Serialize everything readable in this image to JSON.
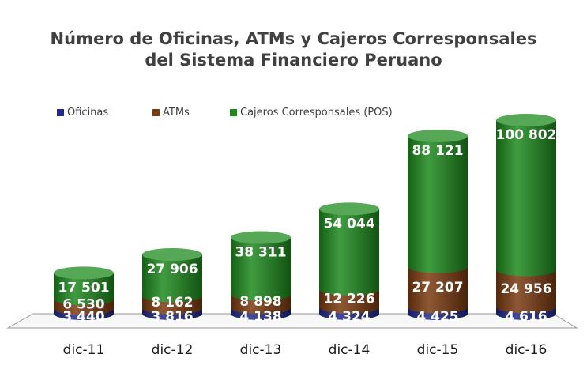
{
  "chart_data": {
    "type": "bar",
    "stacked": true,
    "style": "3d-cylinder",
    "title": "Número de Oficinas, ATMs y Cajeros Corresponsales",
    "subtitle": "del Sistema Financiero Peruano",
    "categories": [
      "dic-11",
      "dic-12",
      "dic-13",
      "dic-14",
      "dic-15",
      "dic-16"
    ],
    "series": [
      {
        "name": "Oficinas",
        "color": "#1f2a8c",
        "values": [
          3440,
          3816,
          4138,
          4324,
          4425,
          4616
        ],
        "labels": [
          "3 440",
          "3 816",
          "4 138",
          "4 324",
          "4 425",
          "4 616"
        ]
      },
      {
        "name": "ATMs",
        "color": "#7a3b10",
        "values": [
          6530,
          8162,
          8898,
          12226,
          27207,
          24956
        ],
        "labels": [
          "6 530",
          "8 162",
          "8 898",
          "12 226",
          "27 207",
          "24 956"
        ]
      },
      {
        "name": "Cajeros Corresponsales (POS)",
        "color": "#1e8a1e",
        "values": [
          17501,
          27906,
          38311,
          54044,
          88121,
          100802
        ],
        "labels": [
          "17 501",
          "27 906",
          "38 311",
          "54 044",
          "88 121",
          "100 802"
        ]
      }
    ],
    "legend_position": "top",
    "grid": false
  }
}
